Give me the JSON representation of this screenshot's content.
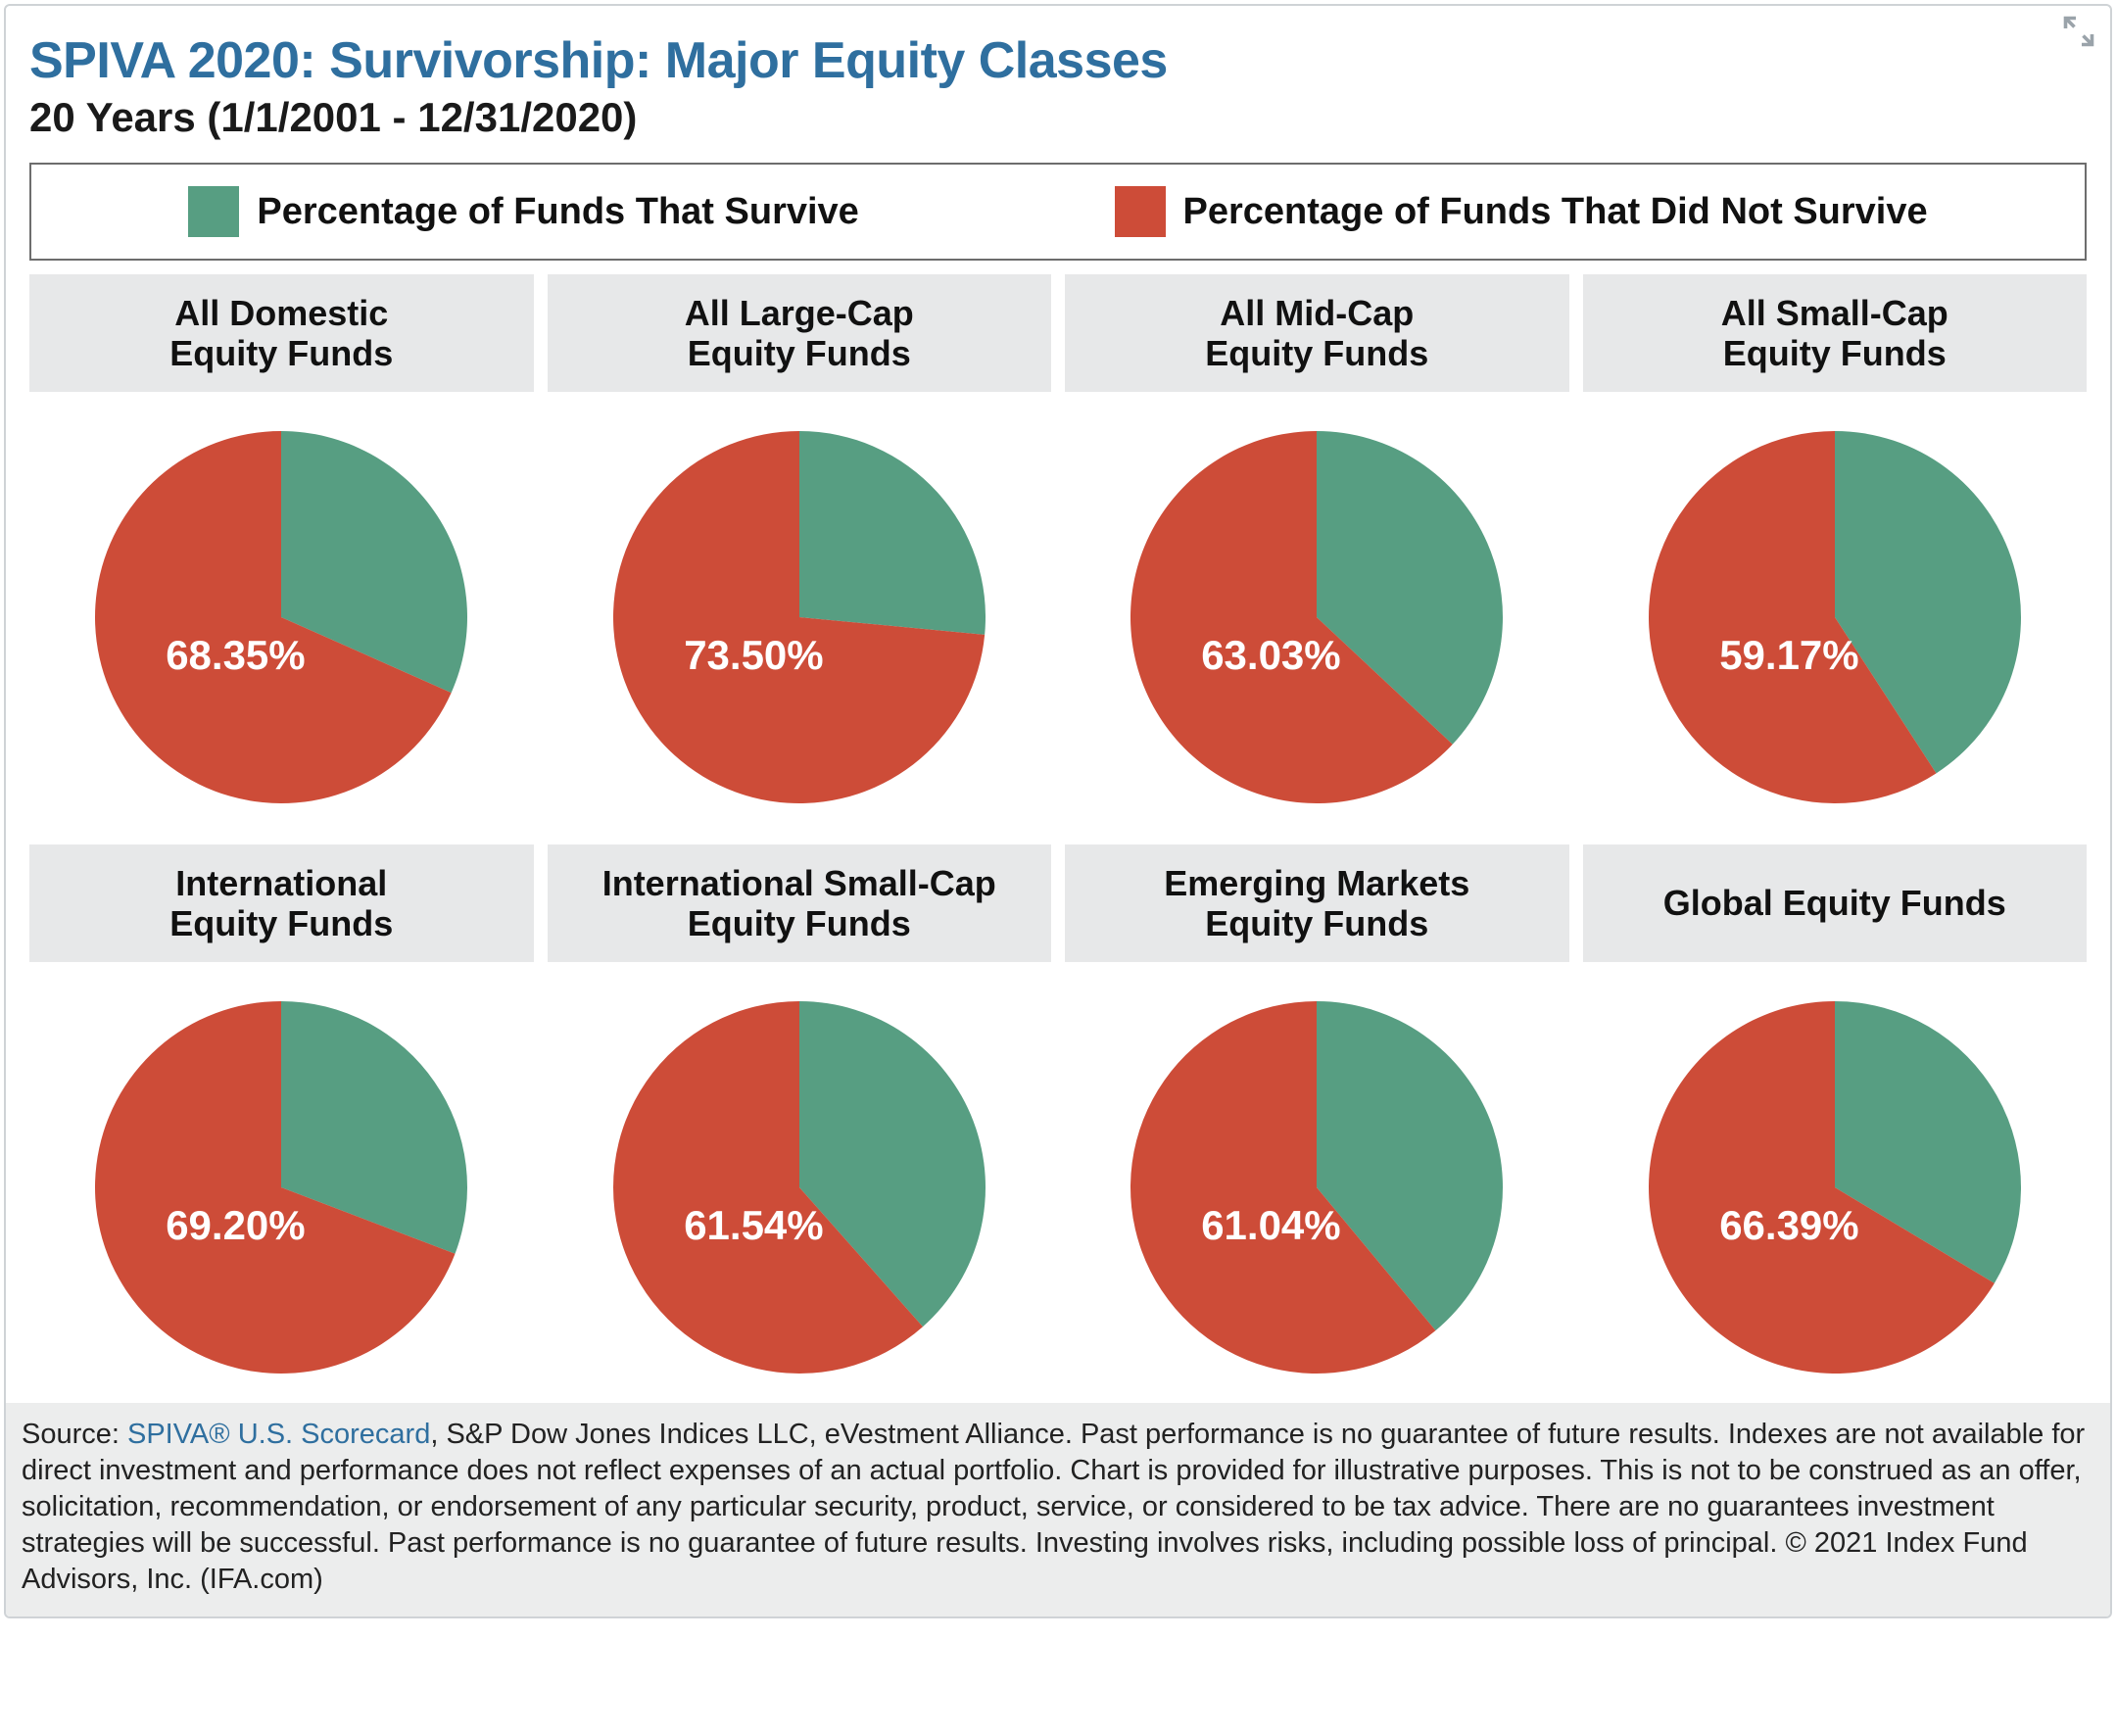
{
  "styling": {
    "title_color": "#2f6f9f",
    "survive_color": "#579e82",
    "not_survive_color": "#cd4c38",
    "header_bg": "#e7e8e9",
    "footer_bg": "#eceded",
    "border_color": "#cfd3d6",
    "legend_border": "#6d6d6d",
    "pie_radius": 190,
    "label_color": "#ffffff",
    "title_fontsize": 52,
    "subtitle_fontsize": 42,
    "legend_fontsize": 38,
    "header_fontsize": 36,
    "pct_fontsize": 42,
    "footer_fontsize": 29
  },
  "title": "SPIVA 2020: Survivorship: Major Equity Classes",
  "subtitle": "20 Years (1/1/2001 - 12/31/2020)",
  "legend": {
    "survive": "Percentage of Funds That Survive",
    "not_survive": "Percentage of Funds That Did Not Survive"
  },
  "charts": [
    {
      "label_line1": "All Domestic",
      "label_line2": "Equity Funds",
      "not_survive_pct": 68.35,
      "display": "68.35%"
    },
    {
      "label_line1": "All Large-Cap",
      "label_line2": "Equity Funds",
      "not_survive_pct": 73.5,
      "display": "73.50%"
    },
    {
      "label_line1": "All Mid-Cap",
      "label_line2": "Equity Funds",
      "not_survive_pct": 63.03,
      "display": "63.03%"
    },
    {
      "label_line1": "All Small-Cap",
      "label_line2": "Equity Funds",
      "not_survive_pct": 59.17,
      "display": "59.17%"
    },
    {
      "label_line1": "International",
      "label_line2": "Equity Funds",
      "not_survive_pct": 69.2,
      "display": "69.20%"
    },
    {
      "label_line1": "International Small-Cap",
      "label_line2": "Equity Funds",
      "not_survive_pct": 61.54,
      "display": "61.54%"
    },
    {
      "label_line1": "Emerging Markets",
      "label_line2": "Equity Funds",
      "not_survive_pct": 61.04,
      "display": "61.04%"
    },
    {
      "label_line1": "Global Equity Funds",
      "label_line2": "",
      "not_survive_pct": 66.39,
      "display": "66.39%"
    }
  ],
  "footer": {
    "prefix": "Source: ",
    "link_text": "SPIVA® U.S. Scorecard",
    "rest": ", S&P Dow Jones Indices LLC, eVestment Alliance. Past performance is no guarantee of future results. Indexes are not available for direct investment and performance does not reflect expenses of an actual portfolio. Chart is provided for illustrative purposes. This is not to be construed as an offer, solicitation, recommendation, or endorsement of any particular security, product, service, or considered to be tax advice. There are no guarantees investment strategies will be successful. Past performance is no guarantee of future results. Investing involves risks, including possible loss of principal. © 2021 Index Fund Advisors, Inc. (IFA.com)"
  }
}
